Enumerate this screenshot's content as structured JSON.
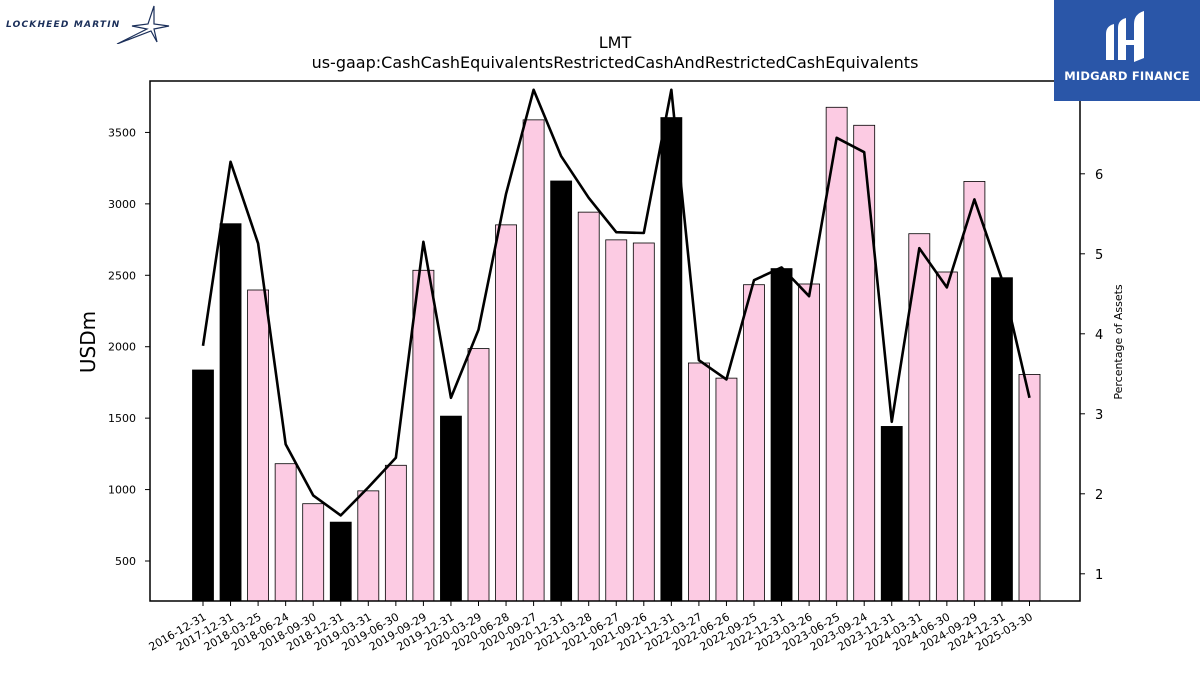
{
  "logos": {
    "left_text": "LOCKHEED MARTIN",
    "right_text": "MIDGARD FINANCE"
  },
  "colors": {
    "highlight_bar": "#000000",
    "regular_bar": "#fccbe3",
    "bar_edge": "#000000",
    "line": "#000000",
    "brand_blue": "#2a56a8"
  },
  "chart_data": {
    "type": "bar",
    "title": "LMT",
    "subtitle": "us-gaap:CashCashEquivalentsRestrictedCashAndRestrictedCashEquivalents",
    "ylabel": "USDm",
    "y2label": "Percentage of Assets",
    "ylim": [
      220,
      3860
    ],
    "y2lim": [
      0.66,
      7.16
    ],
    "yticks": [
      500,
      1000,
      1500,
      2000,
      2500,
      3000,
      3500
    ],
    "y2ticks": [
      1,
      2,
      3,
      4,
      5,
      6,
      7
    ],
    "grid": false,
    "legend": "none",
    "categories": [
      "2016-12-31",
      "2017-12-31",
      "2018-03-25",
      "2018-06-24",
      "2018-09-30",
      "2018-12-31",
      "2019-03-31",
      "2019-06-30",
      "2019-09-29",
      "2019-12-31",
      "2020-03-29",
      "2020-06-28",
      "2020-09-27",
      "2020-12-31",
      "2021-03-28",
      "2021-06-27",
      "2021-09-26",
      "2021-12-31",
      "2022-03-27",
      "2022-06-26",
      "2022-09-25",
      "2022-12-31",
      "2023-03-26",
      "2023-06-25",
      "2023-09-24",
      "2023-12-31",
      "2024-03-31",
      "2024-06-30",
      "2024-09-29",
      "2024-12-31",
      "2025-03-30"
    ],
    "series": [
      {
        "type": "bar",
        "values": [
          1837,
          2861,
          2397,
          1181,
          901,
          772,
          991,
          1170,
          2535,
          1514,
          1987,
          2853,
          3588,
          3160,
          2942,
          2748,
          2726,
          3604,
          1886,
          1780,
          2434,
          2547,
          2439,
          3676,
          3550,
          1442,
          2791,
          2523,
          3157,
          2483,
          1806
        ],
        "highlight": [
          true,
          true,
          false,
          false,
          false,
          true,
          false,
          false,
          false,
          true,
          false,
          false,
          false,
          true,
          false,
          false,
          false,
          true,
          false,
          false,
          false,
          true,
          false,
          false,
          false,
          true,
          false,
          false,
          false,
          true,
          false
        ]
      },
      {
        "type": "line",
        "axis": "right",
        "values": [
          3.85,
          6.15,
          5.13,
          2.62,
          1.98,
          1.73,
          2.08,
          2.45,
          5.15,
          3.2,
          4.05,
          5.75,
          7.05,
          6.22,
          5.7,
          5.27,
          5.26,
          7.05,
          3.67,
          3.43,
          4.67,
          4.83,
          4.47,
          6.45,
          6.27,
          2.9,
          5.07,
          4.58,
          5.68,
          4.68,
          3.2
        ]
      }
    ]
  }
}
